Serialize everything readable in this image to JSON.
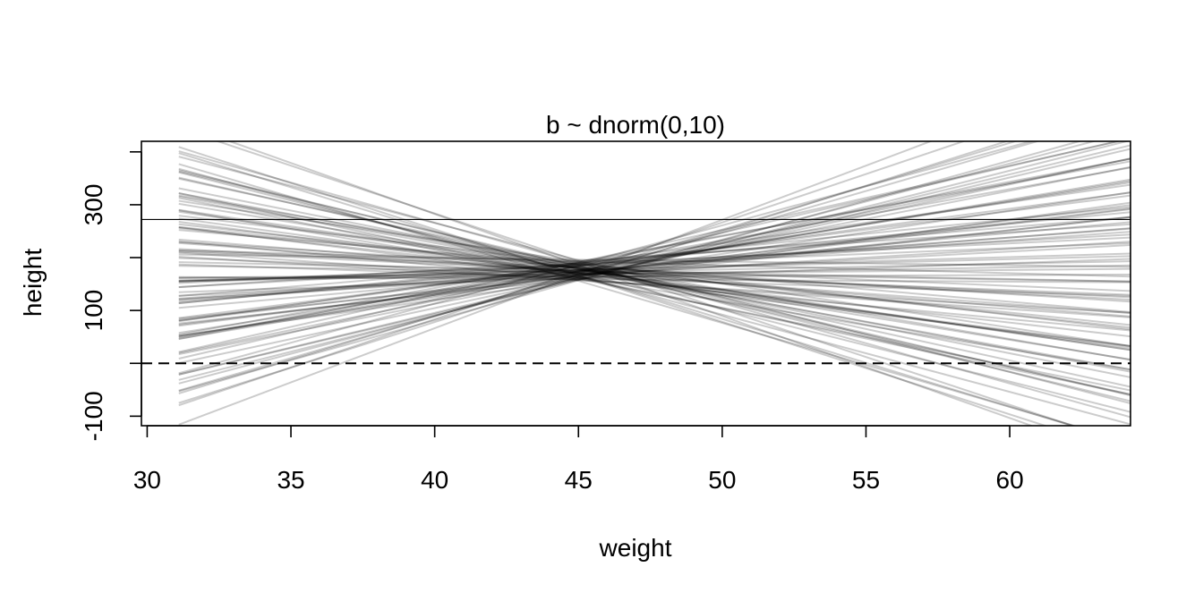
{
  "chart_data": {
    "type": "line",
    "title": "b ~ dnorm(0,10)",
    "xlabel": "weight",
    "ylabel": "height",
    "xlim": [
      29.8,
      64.2
    ],
    "ylim": [
      -118,
      420
    ],
    "x_ticks": [
      30,
      35,
      40,
      45,
      50,
      55,
      60
    ],
    "y_ticks": [
      -100,
      0,
      100,
      200,
      300,
      400
    ],
    "y_tick_labels": [
      "-100",
      "",
      "100",
      "",
      "300",
      ""
    ],
    "grid": false,
    "legend": "none",
    "line_color": "#000000",
    "line_opacity": 0.2,
    "series_x_range": [
      31.1,
      64.2
    ],
    "pivot_weight": 45,
    "reference_lines": [
      {
        "y": 272,
        "style": "solid"
      },
      {
        "y": 0,
        "style": "dashed"
      }
    ],
    "prior_lines": [
      {
        "a": 180,
        "b": -5.6
      },
      {
        "a": 175,
        "b": 4.2
      },
      {
        "a": 162,
        "b": -11.5
      },
      {
        "a": 188,
        "b": 7.8
      },
      {
        "a": 170,
        "b": -2.1
      },
      {
        "a": 158,
        "b": 12.9
      },
      {
        "a": 192,
        "b": -8.3
      },
      {
        "a": 176,
        "b": 1.4
      },
      {
        "a": 165,
        "b": -14.6
      },
      {
        "a": 184,
        "b": 9.7
      },
      {
        "a": 172,
        "b": -4.0
      },
      {
        "a": 160,
        "b": 6.1
      },
      {
        "a": 196,
        "b": -0.7
      },
      {
        "a": 168,
        "b": 15.8
      },
      {
        "a": 178,
        "b": -9.9
      },
      {
        "a": 186,
        "b": 3.0
      },
      {
        "a": 163,
        "b": -6.8
      },
      {
        "a": 174,
        "b": 11.1
      },
      {
        "a": 182,
        "b": -13.2
      },
      {
        "a": 169,
        "b": 0.5
      },
      {
        "a": 190,
        "b": 5.5
      },
      {
        "a": 157,
        "b": -3.2
      },
      {
        "a": 177,
        "b": 8.6
      },
      {
        "a": 166,
        "b": -17.5
      },
      {
        "a": 185,
        "b": 2.2
      },
      {
        "a": 171,
        "b": -7.4
      },
      {
        "a": 159,
        "b": 13.7
      },
      {
        "a": 193,
        "b": -1.5
      },
      {
        "a": 173,
        "b": 4.9
      },
      {
        "a": 181,
        "b": -10.8
      },
      {
        "a": 164,
        "b": 17.2
      },
      {
        "a": 187,
        "b": -4.7
      },
      {
        "a": 167,
        "b": 6.9
      },
      {
        "a": 179,
        "b": -12.4
      },
      {
        "a": 161,
        "b": 1.9
      },
      {
        "a": 189,
        "b": 10.3
      },
      {
        "a": 175,
        "b": -2.6
      },
      {
        "a": 156,
        "b": -15.9
      },
      {
        "a": 183,
        "b": 7.3
      },
      {
        "a": 170,
        "b": -6.2
      },
      {
        "a": 194,
        "b": 3.6
      },
      {
        "a": 162,
        "b": 14.4
      },
      {
        "a": 178,
        "b": -8.9
      },
      {
        "a": 168,
        "b": 0.9
      },
      {
        "a": 186,
        "b": -19.3
      },
      {
        "a": 173,
        "b": 9.1
      },
      {
        "a": 160,
        "b": -5.1
      },
      {
        "a": 191,
        "b": 12.2
      },
      {
        "a": 176,
        "b": -1.1
      },
      {
        "a": 165,
        "b": 5.8
      },
      {
        "a": 184,
        "b": -11.9
      },
      {
        "a": 171,
        "b": 16.4
      },
      {
        "a": 158,
        "b": -3.7
      },
      {
        "a": 188,
        "b": 2.6
      },
      {
        "a": 177,
        "b": -7.9
      },
      {
        "a": 166,
        "b": 8.2
      },
      {
        "a": 195,
        "b": -14.1
      },
      {
        "a": 172,
        "b": 1.1
      },
      {
        "a": 163,
        "b": 11.7
      },
      {
        "a": 181,
        "b": -5.9
      },
      {
        "a": 169,
        "b": 20.5
      },
      {
        "a": 187,
        "b": -9.4
      },
      {
        "a": 174,
        "b": 3.9
      },
      {
        "a": 159,
        "b": -0.3
      },
      {
        "a": 183,
        "b": 7.0
      },
      {
        "a": 167,
        "b": -16.6
      },
      {
        "a": 190,
        "b": 4.5
      },
      {
        "a": 176,
        "b": -2.9
      },
      {
        "a": 161,
        "b": 13.1
      },
      {
        "a": 179,
        "b": -8.0
      },
      {
        "a": 170,
        "b": 6.4
      },
      {
        "a": 185,
        "b": -12.8
      },
      {
        "a": 164,
        "b": 0.2
      },
      {
        "a": 192,
        "b": 9.9
      },
      {
        "a": 173,
        "b": -4.4
      },
      {
        "a": 157,
        "b": 15.1
      },
      {
        "a": 180,
        "b": -10.2
      },
      {
        "a": 168,
        "b": 2.9
      },
      {
        "a": 189,
        "b": -6.5
      },
      {
        "a": 175,
        "b": 18.3
      },
      {
        "a": 162,
        "b": -1.8
      },
      {
        "a": 186,
        "b": 5.2
      },
      {
        "a": 171,
        "b": -13.7
      },
      {
        "a": 166,
        "b": 10.7
      },
      {
        "a": 182,
        "b": -3.4
      },
      {
        "a": 158,
        "b": 7.6
      },
      {
        "a": 193,
        "b": -18.1
      },
      {
        "a": 177,
        "b": 1.6
      },
      {
        "a": 169,
        "b": -7.1
      },
      {
        "a": 184,
        "b": 12.6
      },
      {
        "a": 163,
        "b": -9.1
      },
      {
        "a": 178,
        "b": 4.0
      },
      {
        "a": 172,
        "b": -0.9
      },
      {
        "a": 187,
        "b": 14.8
      },
      {
        "a": 160,
        "b": -11.0
      },
      {
        "a": 174,
        "b": 8.9
      },
      {
        "a": 181,
        "b": -2.3
      },
      {
        "a": 167,
        "b": 3.3
      },
      {
        "a": 190,
        "b": -15.2
      },
      {
        "a": 165,
        "b": 6.6
      }
    ]
  }
}
